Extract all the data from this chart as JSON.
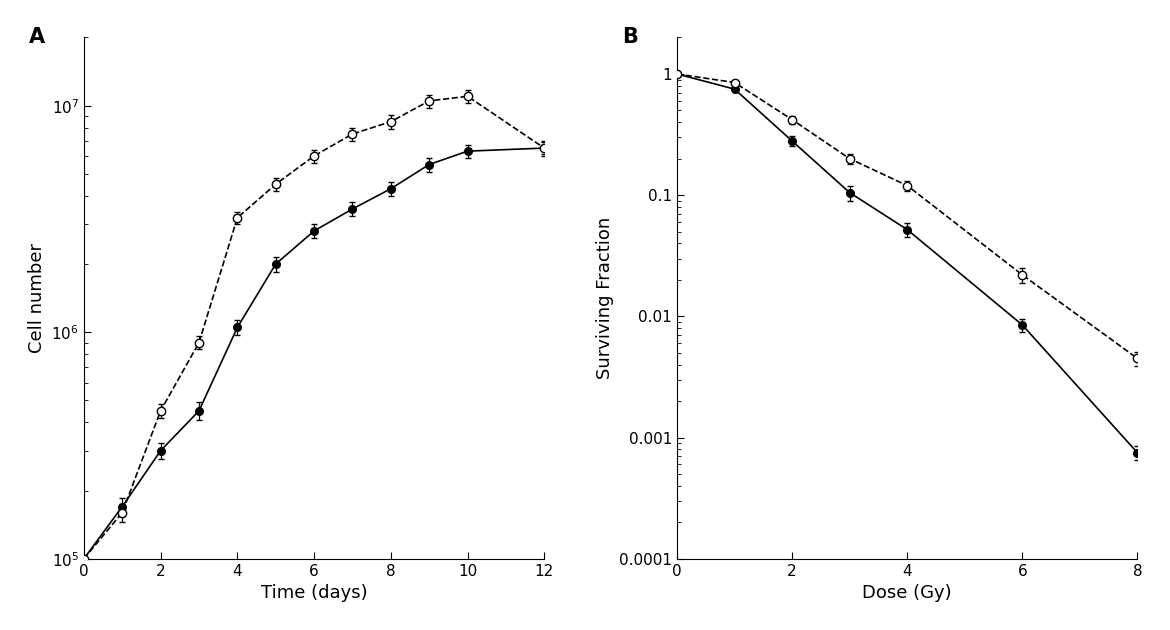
{
  "panel_A": {
    "solid_x": [
      0,
      1,
      2,
      3,
      4,
      5,
      6,
      7,
      8,
      9,
      10,
      12
    ],
    "solid_y": [
      100000.0,
      170000.0,
      300000.0,
      450000.0,
      1050000.0,
      2000000.0,
      2800000.0,
      3500000.0,
      4300000.0,
      5500000.0,
      6300000.0,
      6500000.0
    ],
    "solid_yerr": [
      0,
      15000.0,
      25000.0,
      40000.0,
      80000.0,
      150000.0,
      200000.0,
      250000.0,
      300000.0,
      400000.0,
      400000.0,
      400000.0
    ],
    "dashed_x": [
      0,
      1,
      2,
      3,
      4,
      5,
      6,
      7,
      8,
      9,
      10,
      12
    ],
    "dashed_y": [
      100000.0,
      160000.0,
      450000.0,
      900000.0,
      3200000.0,
      4500000.0,
      6000000.0,
      7500000.0,
      8500000.0,
      10500000.0,
      11000000.0,
      6500000.0
    ],
    "dashed_yerr": [
      0,
      15000.0,
      30000.0,
      60000.0,
      200000.0,
      300000.0,
      400000.0,
      500000.0,
      600000.0,
      700000.0,
      700000.0,
      500000.0
    ],
    "xlabel": "Time (days)",
    "ylabel": "Cell number",
    "xlim": [
      0,
      12
    ],
    "ylim": [
      100000.0,
      20000000.0
    ],
    "xticks": [
      0,
      2,
      4,
      6,
      8,
      10,
      12
    ],
    "yticks": [
      100000.0,
      1000000.0,
      10000000.0
    ],
    "ytick_labels": [
      "10$^5$",
      "10$^6$",
      "10$^7$"
    ],
    "label": "A"
  },
  "panel_B": {
    "solid_x": [
      0,
      1,
      2,
      3,
      4,
      6,
      8
    ],
    "solid_y": [
      1.0,
      0.75,
      0.28,
      0.105,
      0.052,
      0.0085,
      0.00075
    ],
    "solid_yerr": [
      0.0,
      0.04,
      0.025,
      0.015,
      0.007,
      0.001,
      0.0001
    ],
    "dashed_x": [
      0,
      1,
      2,
      3,
      4,
      6,
      8
    ],
    "dashed_y": [
      1.0,
      0.85,
      0.42,
      0.2,
      0.12,
      0.022,
      0.0045
    ],
    "dashed_yerr": [
      0.0,
      0.04,
      0.03,
      0.018,
      0.012,
      0.003,
      0.0006
    ],
    "xlabel": "Dose (Gy)",
    "ylabel": "Surviving Fraction",
    "xlim": [
      0,
      8
    ],
    "ylim": [
      0.0001,
      2.0
    ],
    "xticks": [
      0,
      2,
      4,
      6,
      8
    ],
    "yticks": [
      0.0001,
      0.001,
      0.01,
      0.1,
      1.0
    ],
    "ytick_labels": [
      "0.0001",
      "0.001",
      "0.01",
      "0.1",
      "1"
    ],
    "label": "B"
  }
}
